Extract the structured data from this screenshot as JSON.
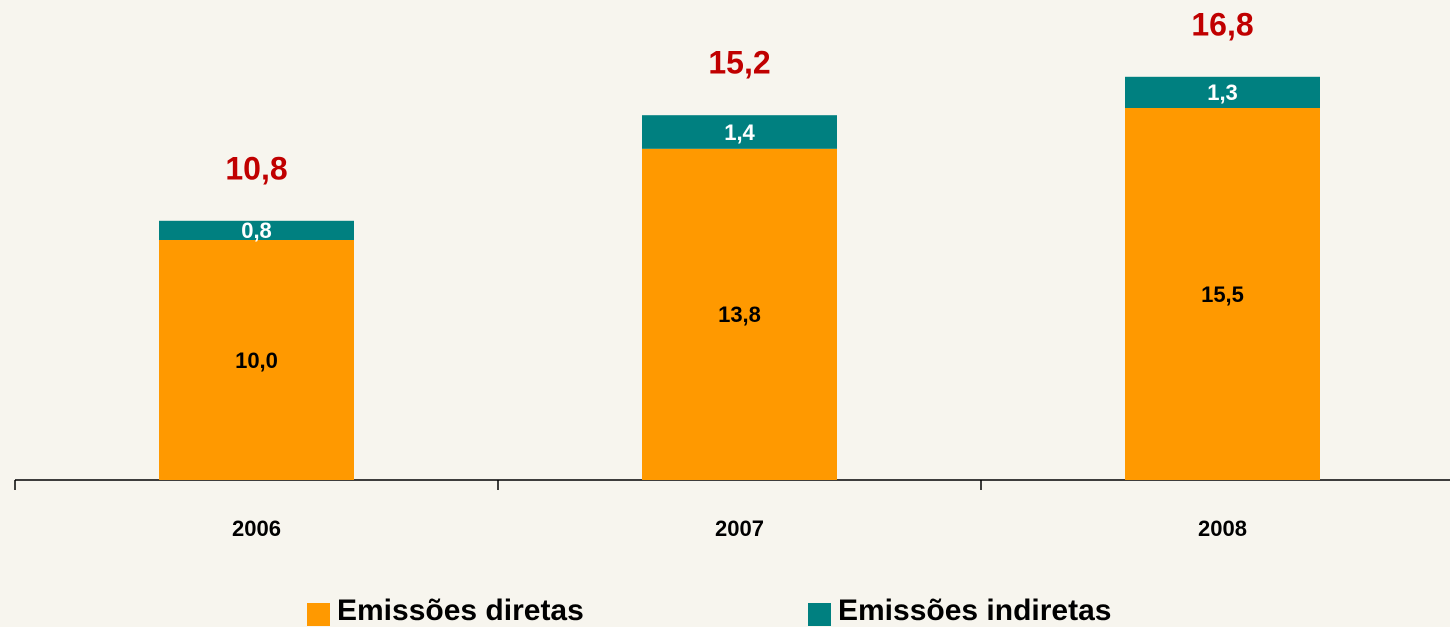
{
  "chart_data": {
    "type": "stacked_bar",
    "categories": [
      "2006",
      "2007",
      "2008"
    ],
    "series": [
      {
        "name": "Emissões diretas",
        "color": "#ff9900",
        "values": [
          10.0,
          13.8,
          15.5
        ],
        "value_labels": [
          "10,0",
          "13,8",
          "15,5"
        ]
      },
      {
        "name": "Emissões indiretas",
        "color": "#008080",
        "values": [
          0.8,
          1.4,
          1.3
        ],
        "value_labels": [
          "0,8",
          "1,4",
          "1,3"
        ]
      }
    ],
    "totals": [
      10.8,
      15.2,
      16.8
    ],
    "total_labels": [
      "10,8",
      "15,2",
      "16,8"
    ],
    "total_color": "#c00000"
  }
}
